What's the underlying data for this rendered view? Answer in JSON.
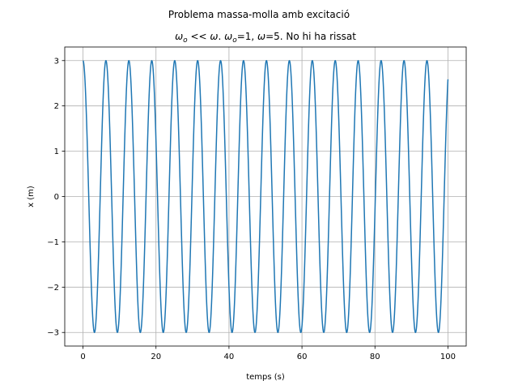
{
  "figure": {
    "suptitle": "Problema massa-molla amb excitació"
  },
  "chart_data": {
    "type": "line",
    "title_parts": {
      "omega0_symbol": "ω",
      "omega0_sub": "o",
      "lt": "<<",
      "omega_symbol": "ω",
      "after_omega": ". ",
      "eq_omega0_value": "=1, ",
      "eq_omega_value": "=5. No hi ha rissat"
    },
    "xlabel": "temps (s)",
    "ylabel": "x (m)",
    "xlim": [
      -5,
      105
    ],
    "ylim": [
      -3.3,
      3.3
    ],
    "xticks": [
      0,
      20,
      40,
      60,
      80,
      100
    ],
    "xtick_labels": [
      "0",
      "20",
      "40",
      "60",
      "80",
      "100"
    ],
    "yticks": [
      -3,
      -2,
      -1,
      0,
      1,
      2,
      3
    ],
    "ytick_labels": [
      "−3",
      "−2",
      "−1",
      "0",
      "1",
      "2",
      "3"
    ],
    "grid": true,
    "series": [
      {
        "function": "x(t) = 3·cos(t)",
        "amplitude": 3,
        "angular_frequency": 1,
        "t_start": 0,
        "t_end": 100,
        "color": "#1f77b4"
      }
    ]
  }
}
